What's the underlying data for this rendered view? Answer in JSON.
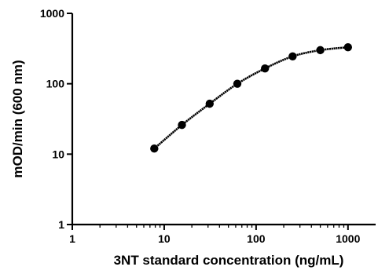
{
  "chart_data": {
    "type": "scatter",
    "xscale": "log",
    "yscale": "log",
    "xlabel": "3NT standard concentration (ng/mL)",
    "ylabel": "mOD/min (600 nm)",
    "xlim": [
      1,
      2000
    ],
    "ylim": [
      1,
      1000
    ],
    "x_ticks": [
      1,
      10,
      100,
      1000
    ],
    "x_tick_labels": [
      "1",
      "10",
      "100",
      "1000"
    ],
    "y_ticks": [
      1,
      10,
      100,
      1000
    ],
    "y_tick_labels": [
      "1",
      "10",
      "100",
      "1000"
    ],
    "grid": false,
    "series": [
      {
        "x": [
          7.8,
          15.6,
          31.25,
          62.5,
          125,
          250,
          500,
          1000
        ],
        "y": [
          12,
          26,
          52,
          100,
          165,
          245,
          300,
          330
        ],
        "fit_curve": true
      }
    ]
  }
}
